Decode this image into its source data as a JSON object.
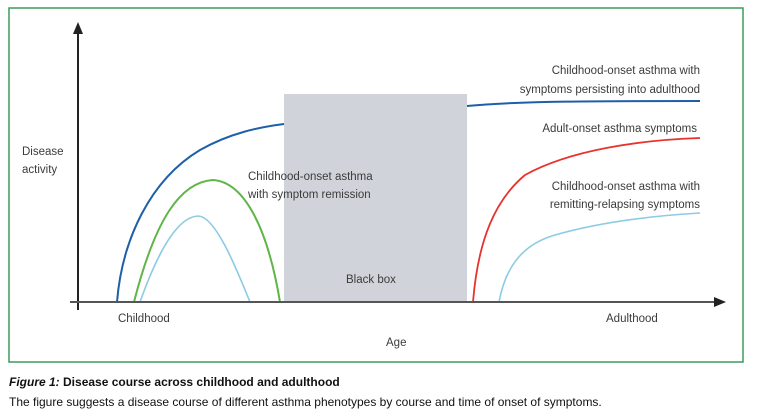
{
  "figure": {
    "y_axis_label": [
      "Disease",
      "activity"
    ],
    "x_axis_label": "Age",
    "x_start_label": "Childhood",
    "x_end_label": "Adulthood",
    "black_box_label": "Black box",
    "series": [
      {
        "name": [
          "Childhood-onset asthma with",
          "symptoms persisting into adulthood"
        ],
        "color": "#1f5fa8"
      },
      {
        "name": [
          "Adult-onset asthma symptoms"
        ],
        "color": "#e8322d"
      },
      {
        "name": [
          "Childhood-onset asthma with",
          "remitting-relapsing symptoms"
        ],
        "color": "#8ccbe3"
      },
      {
        "name": [
          "Childhood-onset asthma",
          "with symptom remission"
        ],
        "color": "#5fb548"
      }
    ]
  },
  "caption": {
    "label": "Figure 1:",
    "title": "Disease course across childhood and adulthood",
    "body": "The figure suggests a disease course of different asthma phenotypes by course and time of onset of symptoms."
  }
}
